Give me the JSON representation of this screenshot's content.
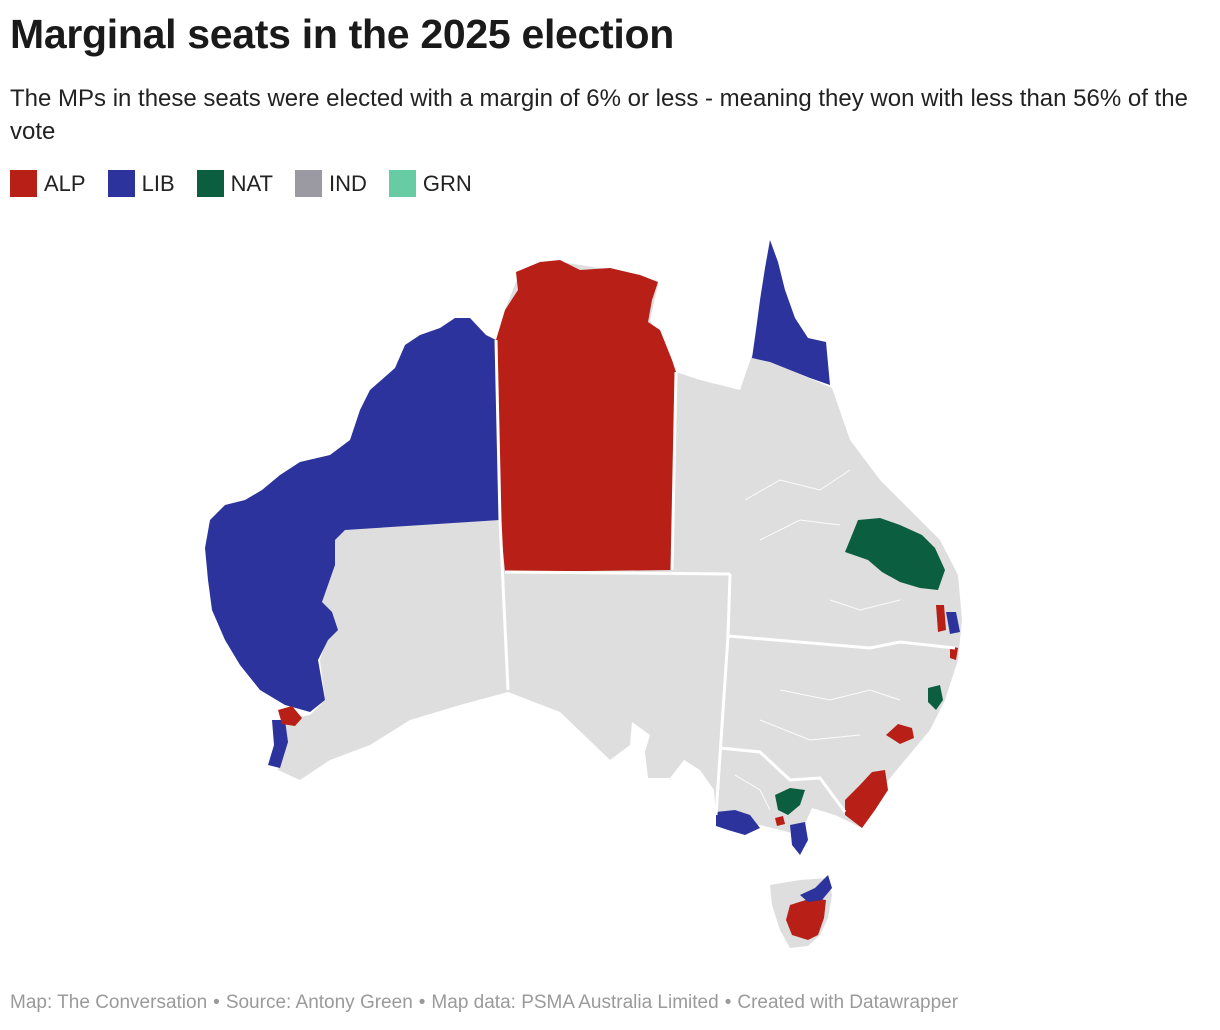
{
  "title": "Marginal seats in the 2025 election",
  "subtitle": "The MPs in these seats were elected with a margin of 6% or less - meaning they won with less than 56% of the vote",
  "legend": [
    {
      "label": "ALP",
      "color": "#b71f17"
    },
    {
      "label": "LIB",
      "color": "#2c339c"
    },
    {
      "label": "NAT",
      "color": "#0b5e3f"
    },
    {
      "label": "IND",
      "color": "#9b9aa3"
    },
    {
      "label": "GRN",
      "color": "#67cca4"
    }
  ],
  "colors": {
    "land": "#dedede",
    "border": "#ffffff"
  },
  "footer": {
    "map_credit": "Map: The Conversation",
    "source": "Source: Antony Green",
    "map_data": "Map data: PSMA Australia Limited",
    "created_with": "Created with Datawrapper",
    "separator": "•"
  }
}
